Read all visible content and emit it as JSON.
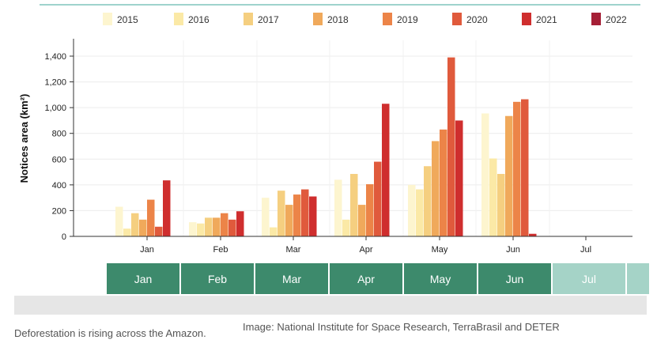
{
  "chart_data": {
    "type": "bar",
    "ylabel": "Notices area (km²)",
    "ylim": [
      0,
      1400
    ],
    "yticks": [
      "0",
      "200",
      "400",
      "600",
      "800",
      "1,000",
      "1,200",
      "1,400"
    ],
    "categories": [
      "Jan",
      "Feb",
      "Mar",
      "Apr",
      "May",
      "Jun",
      "Jul"
    ],
    "legend_position": "top",
    "series": [
      {
        "name": "2015",
        "color": "#fdf5cf",
        "values": [
          230,
          110,
          300,
          440,
          400,
          955,
          null
        ]
      },
      {
        "name": "2016",
        "color": "#fbe9a6",
        "values": [
          60,
          100,
          70,
          130,
          365,
          605,
          null
        ]
      },
      {
        "name": "2017",
        "color": "#f5cf80",
        "values": [
          180,
          145,
          355,
          485,
          545,
          485,
          null
        ]
      },
      {
        "name": "2018",
        "color": "#f0a95b",
        "values": [
          130,
          145,
          245,
          245,
          740,
          935,
          null
        ]
      },
      {
        "name": "2019",
        "color": "#ec8448",
        "values": [
          285,
          180,
          325,
          405,
          830,
          1045,
          null
        ]
      },
      {
        "name": "2020",
        "color": "#e05a3c",
        "values": [
          75,
          130,
          365,
          580,
          1390,
          1065,
          null
        ]
      },
      {
        "name": "2021",
        "color": "#cf2e2e",
        "values": [
          435,
          195,
          310,
          1030,
          900,
          20,
          null
        ]
      },
      {
        "name": "2022",
        "color": "#a51f36",
        "values": [
          null,
          null,
          null,
          null,
          null,
          null,
          null
        ]
      }
    ]
  },
  "timeline": {
    "items": [
      {
        "label": "Jan",
        "active": true
      },
      {
        "label": "Feb",
        "active": true
      },
      {
        "label": "Mar",
        "active": true
      },
      {
        "label": "Apr",
        "active": true
      },
      {
        "label": "May",
        "active": true
      },
      {
        "label": "Jun",
        "active": true
      },
      {
        "label": "Jul",
        "active": false
      },
      {
        "label": "",
        "active": false
      }
    ]
  },
  "caption": "Deforestation is rising across the Amazon.",
  "credit": "Image: National Institute for Space Research, TerraBrasil and DETER"
}
